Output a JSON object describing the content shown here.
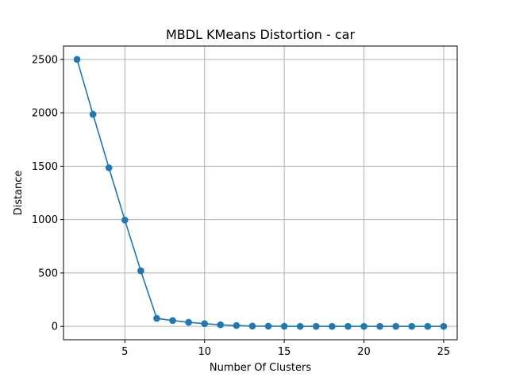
{
  "chart_data": {
    "type": "line",
    "title": "MBDL KMeans Distortion - car",
    "xlabel": "Number Of Clusters",
    "ylabel": "Distance",
    "xlim": [
      1.15,
      25.85
    ],
    "ylim": [
      -125,
      2625
    ],
    "xticks": [
      5,
      10,
      15,
      20,
      25
    ],
    "yticks": [
      0,
      500,
      1000,
      1500,
      2000,
      2500
    ],
    "grid": true,
    "series": [
      {
        "color": "#1f77b4",
        "marker": "circle",
        "x": [
          2,
          3,
          4,
          5,
          6,
          7,
          8,
          9,
          10,
          11,
          12,
          13,
          14,
          15,
          16,
          17,
          18,
          19,
          20,
          21,
          22,
          23,
          24,
          25
        ],
        "y": [
          2500,
          1985,
          1485,
          995,
          520,
          75,
          55,
          38,
          25,
          15,
          8,
          3,
          2,
          1,
          0,
          0,
          0,
          0,
          0,
          0,
          0,
          0,
          0,
          0
        ]
      }
    ]
  }
}
